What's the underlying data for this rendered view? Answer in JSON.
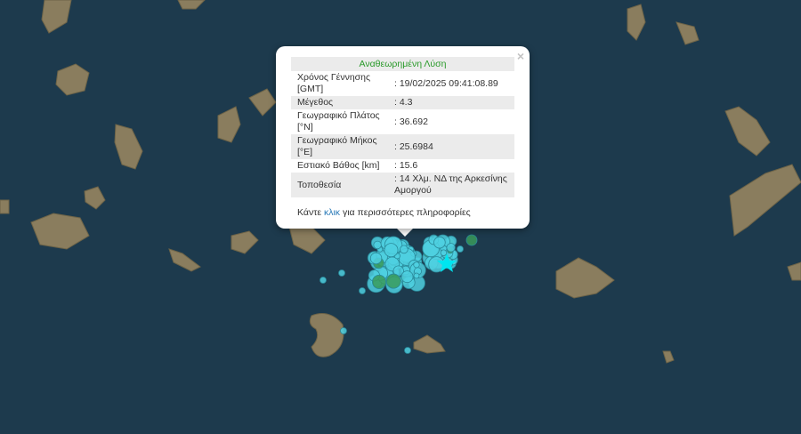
{
  "popup": {
    "title": "Αναθεωρημένη Λύση",
    "close_icon": "×",
    "rows": [
      {
        "label": "Χρόνος Γέννησης [GMT]",
        "value": ": 19/02/2025 09:41:08.89"
      },
      {
        "label": "Μέγεθος",
        "value": ": 4.3"
      },
      {
        "label": "Γεωγραφικό Πλάτος [°N]",
        "value": ": 36.692"
      },
      {
        "label": "Γεωγραφικό Μήκος [°E]",
        "value": ": 25.6984"
      },
      {
        "label": "Εστιακό Βάθος [km]",
        "value": ": 15.6"
      },
      {
        "label": "Τοποθεσία",
        "value": ": 14 Χλμ. ΝΔ της Αρκεσίνης Αμοργού"
      }
    ],
    "more_prefix": "Κάντε ",
    "more_link": "κλικ",
    "more_suffix": " για περισσότερες πληροφορίες"
  },
  "colors": {
    "sea": "#1d3a4d",
    "land": "#8a7d5e",
    "quake": "#4fd0e0",
    "quake_old": "#3a9a5a",
    "star": "#00e5f0"
  }
}
